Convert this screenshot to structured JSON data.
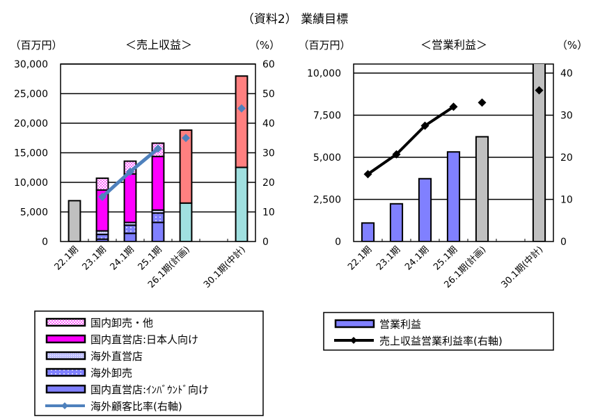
{
  "title": "（資料2） 業績目標",
  "chart_data": [
    {
      "type": "bar",
      "stacked": true,
      "title": "＜売上収益＞",
      "ylabel": "（百万円）",
      "y2label": "（%）",
      "ylim": [
        0,
        30000
      ],
      "y2lim": [
        0,
        60
      ],
      "yticks": [
        "0",
        "5,000",
        "10,000",
        "15,000",
        "20,000",
        "25,000",
        "30,000"
      ],
      "y2ticks": [
        "0",
        "10",
        "20",
        "30",
        "40",
        "50",
        "60"
      ],
      "grid": true,
      "legend_position": "bottom",
      "categories": [
        "22.1期",
        "23.1期",
        "24.1期",
        "25.1期",
        "26.1期(計画)",
        "",
        "30.1期(中計)"
      ],
      "series": [
        {
          "name": "国内直営店:ｲﾝﾊﾞｳﾝﾄﾞ向け",
          "color": "#8080ff",
          "pattern": "solid",
          "values": [
            null,
            400,
            1380,
            3230,
            null,
            null,
            null
          ]
        },
        {
          "name": "海外卸売",
          "color": "#8080ff",
          "pattern": "dots",
          "values": [
            null,
            800,
            1380,
            1580,
            null,
            null,
            null
          ]
        },
        {
          "name": "海外直営店",
          "color": "#c0c0ff",
          "pattern": "fine",
          "values": [
            null,
            600,
            470,
            510,
            null,
            null,
            null
          ]
        },
        {
          "name": "国内直営店:日本人向け",
          "color": "#ff00ff",
          "pattern": "solid",
          "values": [
            null,
            6900,
            8200,
            9060,
            null,
            null,
            null
          ]
        },
        {
          "name": "国内卸売・他",
          "color": "#ff66ff",
          "pattern": "check",
          "values": [
            null,
            2000,
            2150,
            2250,
            null,
            null,
            null
          ]
        },
        {
          "color": "#c0c0c0",
          "pattern": "solid",
          "values": [
            6900,
            null,
            null,
            null,
            null,
            null,
            null
          ]
        },
        {
          "color": "#a0e0e0",
          "pattern": "solid",
          "values": [
            null,
            null,
            null,
            null,
            6500,
            null,
            12530
          ]
        },
        {
          "color": "#ff8080",
          "pattern": "solid",
          "values": [
            null,
            null,
            null,
            null,
            12330,
            null,
            15440
          ]
        }
      ],
      "line_series": {
        "name": "海外顧客比率(右軸)",
        "color": "#4f81bd",
        "values": [
          null,
          15.1,
          23.6,
          31.4,
          35,
          null,
          45
        ],
        "connected_until": 3
      }
    },
    {
      "type": "bar",
      "title": "＜営業利益＞",
      "ylabel": "（百万円）",
      "y2label": "（%）",
      "ylim": [
        0,
        10000
      ],
      "y2lim": [
        0,
        40
      ],
      "yticks": [
        "0",
        "2,500",
        "5,000",
        "7,500",
        "10,000"
      ],
      "y2ticks": [
        "0",
        "10",
        "20",
        "30",
        "40"
      ],
      "grid": true,
      "legend_position": "bottom",
      "categories": [
        "22.1期",
        "23.1期",
        "24.1期",
        "25.1期",
        "26.1期(計画)",
        "",
        "30.1期(中計)"
      ],
      "series": [
        {
          "name": "営業利益",
          "color": "#8080ff",
          "values": [
            1100,
            2240,
            3730,
            5320,
            null,
            null,
            null
          ]
        },
        {
          "color": "#c0c0c0",
          "values": [
            null,
            null,
            null,
            null,
            6220,
            null,
            11000
          ]
        }
      ],
      "line_series": {
        "name": "売上収益営業利益率(右軸)",
        "color": "#000000",
        "values": [
          16.0,
          20.7,
          27.5,
          32.0,
          33.0,
          null,
          35.9
        ],
        "connected_until": 3
      }
    }
  ]
}
